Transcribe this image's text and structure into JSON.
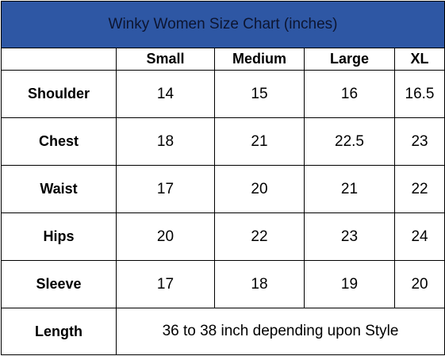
{
  "title": "Winky Women Size Chart (inches)",
  "columns": [
    "",
    "Small",
    "Medium",
    "Large",
    "XL"
  ],
  "rows": [
    {
      "label": "Shoulder",
      "values": [
        "14",
        "15",
        "16",
        "16.5"
      ]
    },
    {
      "label": "Chest",
      "values": [
        "18",
        "21",
        "22.5",
        "23"
      ]
    },
    {
      "label": "Waist",
      "values": [
        "17",
        "20",
        "21",
        "22"
      ]
    },
    {
      "label": "Hips",
      "values": [
        "20",
        "22",
        "23",
        "24"
      ]
    },
    {
      "label": "Sleeve",
      "values": [
        "17",
        "18",
        "19",
        "20"
      ]
    }
  ],
  "length": {
    "label": "Length",
    "value": "36 to 38 inch depending upon Style"
  },
  "colors": {
    "title_background": "#2e57a4",
    "border": "#000000"
  }
}
